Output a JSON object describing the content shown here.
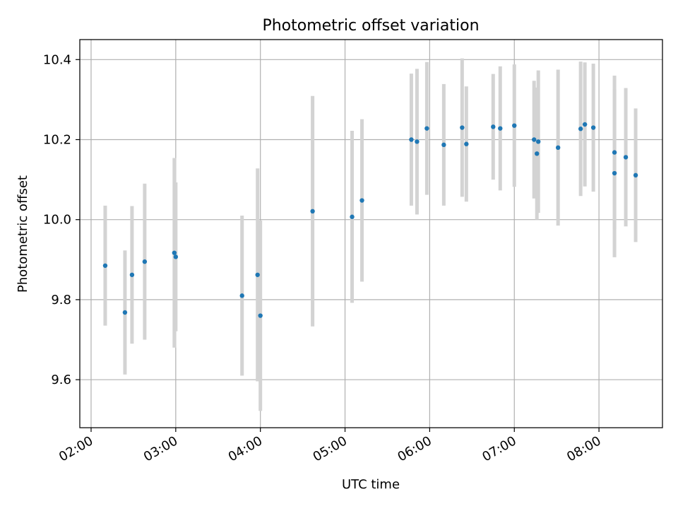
{
  "chart_data": {
    "type": "scatter",
    "title": "Photometric offset variation",
    "xlabel": "UTC time",
    "ylabel": "Photometric offset",
    "x_unit": "UTC time (HH:MM)",
    "xlim": [
      "01:52",
      "08:45"
    ],
    "ylim": [
      9.48,
      10.45
    ],
    "x_ticks": [
      "02:00",
      "03:00",
      "04:00",
      "05:00",
      "06:00",
      "07:00",
      "08:00"
    ],
    "y_ticks": [
      "9.6",
      "9.8",
      "10.0",
      "10.2",
      "10.4"
    ],
    "grid": true,
    "colors": {
      "point": "#1f77b4",
      "errorbar": "#d3d3d3",
      "grid": "#b0b0b0"
    },
    "points": [
      {
        "x": "02:10",
        "y": 9.885,
        "err": 0.15
      },
      {
        "x": "02:24",
        "y": 9.768,
        "err": 0.155
      },
      {
        "x": "02:29",
        "y": 9.862,
        "err": 0.172
      },
      {
        "x": "02:38",
        "y": 9.895,
        "err": 0.195
      },
      {
        "x": "02:59",
        "y": 9.917,
        "err": 0.237
      },
      {
        "x": "03:00",
        "y": 9.907,
        "err": 0.186
      },
      {
        "x": "03:47",
        "y": 9.81,
        "err": 0.2
      },
      {
        "x": "03:58",
        "y": 9.862,
        "err": 0.266
      },
      {
        "x": "04:00",
        "y": 9.76,
        "err": 0.238
      },
      {
        "x": "04:37",
        "y": 10.021,
        "err": 0.288
      },
      {
        "x": "05:05",
        "y": 10.007,
        "err": 0.215
      },
      {
        "x": "05:12",
        "y": 10.048,
        "err": 0.203
      },
      {
        "x": "05:47",
        "y": 10.2,
        "err": 0.165
      },
      {
        "x": "05:51",
        "y": 10.195,
        "err": 0.182
      },
      {
        "x": "05:58",
        "y": 10.228,
        "err": 0.166
      },
      {
        "x": "06:10",
        "y": 10.187,
        "err": 0.152
      },
      {
        "x": "06:23",
        "y": 10.23,
        "err": 0.173
      },
      {
        "x": "06:26",
        "y": 10.189,
        "err": 0.144
      },
      {
        "x": "06:45",
        "y": 10.232,
        "err": 0.132
      },
      {
        "x": "06:50",
        "y": 10.228,
        "err": 0.155
      },
      {
        "x": "07:00",
        "y": 10.235,
        "err": 0.153
      },
      {
        "x": "07:14",
        "y": 10.2,
        "err": 0.147
      },
      {
        "x": "07:16",
        "y": 10.165,
        "err": 0.165
      },
      {
        "x": "07:17",
        "y": 10.195,
        "err": 0.178
      },
      {
        "x": "07:31",
        "y": 10.18,
        "err": 0.195
      },
      {
        "x": "07:47",
        "y": 10.227,
        "err": 0.168
      },
      {
        "x": "07:50",
        "y": 10.238,
        "err": 0.155
      },
      {
        "x": "07:56",
        "y": 10.23,
        "err": 0.16
      },
      {
        "x": "08:11",
        "y": 10.168,
        "err": 0.192
      },
      {
        "x": "08:11",
        "y": 10.116,
        "err": 0.21
      },
      {
        "x": "08:19",
        "y": 10.156,
        "err": 0.173
      },
      {
        "x": "08:26",
        "y": 10.111,
        "err": 0.167
      }
    ]
  }
}
